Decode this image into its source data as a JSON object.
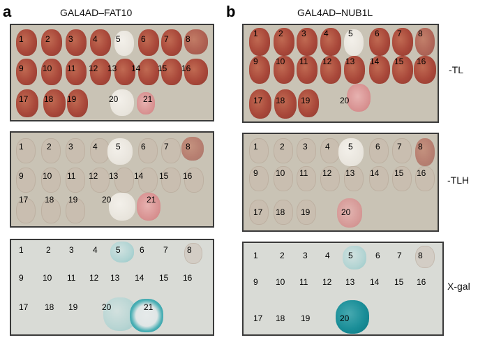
{
  "panel_a": {
    "letter": "a",
    "title": "GAL4AD–FAT10",
    "tl_numbers": [
      "1",
      "2",
      "3",
      "4",
      "5",
      "6",
      "7",
      "8",
      "9",
      "10",
      "11",
      "12",
      "13",
      "14",
      "15",
      "16",
      "17",
      "18",
      "19",
      "20",
      "21"
    ],
    "tlh_numbers": [
      "1",
      "2",
      "3",
      "4",
      "5",
      "6",
      "7",
      "8",
      "9",
      "10",
      "11",
      "12",
      "13",
      "14",
      "15",
      "16",
      "17",
      "18",
      "19",
      "20",
      "21"
    ],
    "xgal_numbers": [
      "1",
      "2",
      "3",
      "4",
      "5",
      "6",
      "7",
      "8",
      "9",
      "10",
      "11",
      "12",
      "13",
      "14",
      "15",
      "16",
      "17",
      "18",
      "19",
      "20",
      "21"
    ]
  },
  "panel_b": {
    "letter": "b",
    "title": "GAL4AD–NUB1L",
    "tl_numbers": [
      "1",
      "2",
      "3",
      "4",
      "5",
      "6",
      "7",
      "8",
      "9",
      "10",
      "11",
      "12",
      "13",
      "14",
      "15",
      "16",
      "17",
      "18",
      "19",
      "20"
    ],
    "tlh_numbers": [
      "1",
      "2",
      "3",
      "4",
      "5",
      "6",
      "7",
      "8",
      "9",
      "10",
      "11",
      "12",
      "13",
      "14",
      "15",
      "16",
      "17",
      "18",
      "19",
      "20"
    ],
    "xgal_numbers": [
      "1",
      "2",
      "3",
      "4",
      "5",
      "6",
      "7",
      "8",
      "9",
      "10",
      "11",
      "12",
      "13",
      "14",
      "15",
      "16",
      "17",
      "18",
      "19",
      "20"
    ]
  },
  "conditions": {
    "tl": "-TL",
    "tlh": "-TLH",
    "xgal": "X-gal"
  },
  "colors": {
    "growth": "#a9483a",
    "no_growth": "#ece8e0",
    "blue": "#1a8e98"
  }
}
